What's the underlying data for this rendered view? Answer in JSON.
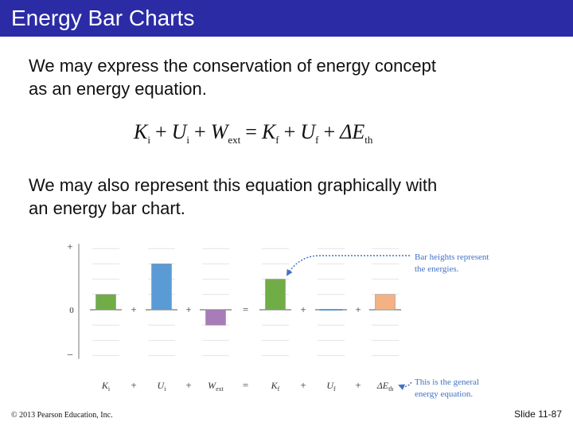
{
  "slide": {
    "title": "Energy Bar Charts",
    "paragraph1_line1": "We may express the conservation of energy concept",
    "paragraph1_line2": "as an energy equation.",
    "paragraph2_line1": "We may also represent this equation graphically with",
    "paragraph2_line2": "an energy bar chart.",
    "footer_left": "© 2013 Pearson Education, Inc.",
    "footer_right": "Slide 11-87"
  },
  "equation": {
    "terms": [
      {
        "sym": "K",
        "sub": "i"
      },
      {
        "sym": "U",
        "sub": "i"
      },
      {
        "sym": "W",
        "sub": "ext"
      },
      {
        "sym": "K",
        "sub": "f"
      },
      {
        "sym": "U",
        "sub": "f"
      },
      {
        "sym": "ΔE",
        "sub": "th"
      }
    ],
    "operators": [
      "+",
      "+",
      "=",
      "+",
      "+"
    ]
  },
  "chart_data": {
    "type": "bar",
    "categories": [
      {
        "sym": "K",
        "sub": "i"
      },
      {
        "sym": "U",
        "sub": "i"
      },
      {
        "sym": "W",
        "sub": "ext"
      },
      {
        "sym": "K",
        "sub": "f"
      },
      {
        "sym": "U",
        "sub": "f"
      },
      {
        "sym": "ΔE",
        "sub": "th"
      }
    ],
    "values": [
      2,
      6,
      -2,
      4,
      0,
      2
    ],
    "operators": [
      "+",
      "+",
      "=",
      "+",
      "+"
    ],
    "y_tick_labels": {
      "top": "+",
      "zero": "0",
      "bottom": "–"
    },
    "ylim": [
      -6,
      8
    ],
    "grid": true,
    "colors": [
      "#70ad47",
      "#5b9bd5",
      "#a87cb8",
      "#70ad47",
      "#5b9bd5",
      "#f4b183"
    ],
    "annotations": [
      {
        "line1": "Bar heights represent",
        "line2": "the energies.",
        "target": "Kf"
      },
      {
        "line1": "This is the general",
        "line2": "energy equation.",
        "target": "ΔEth"
      }
    ],
    "annotation_color": "#4472c4"
  }
}
